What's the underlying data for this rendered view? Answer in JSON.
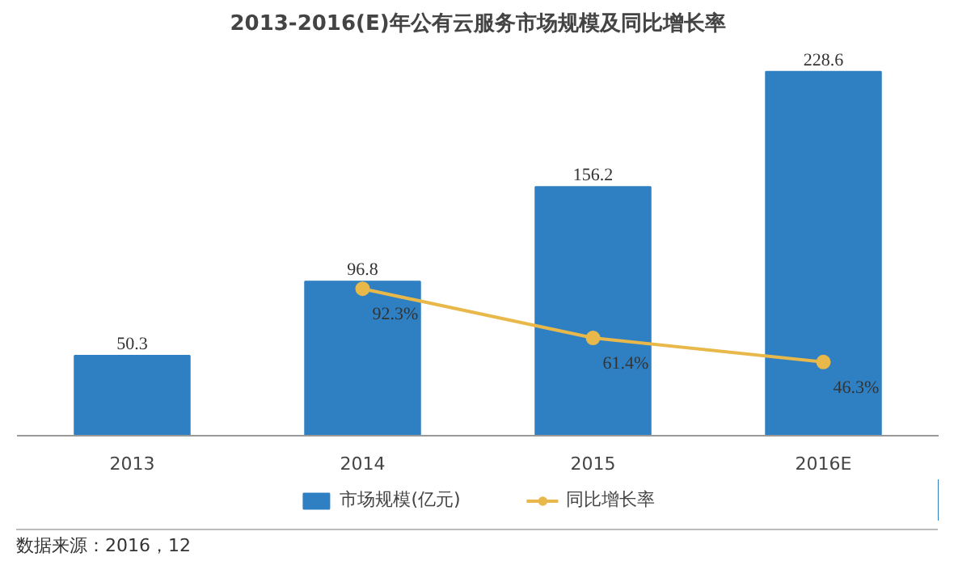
{
  "chart_data": {
    "type": "bar",
    "title": "2013-2016(E)年公有云服务市场规模及同比增长率",
    "categories": [
      "2013",
      "2014",
      "2015",
      "2016E"
    ],
    "series": [
      {
        "name": "市场规模(亿元)",
        "color": "#2f80c3",
        "values": [
          50.3,
          96.8,
          156.2,
          228.6
        ],
        "value_labels": [
          "50.3",
          "96.8",
          "156.2",
          "228.6"
        ]
      },
      {
        "name": "同比增长率",
        "type": "line",
        "axis": "y2",
        "color": "#e8b94a",
        "values": [
          null,
          92.3,
          61.4,
          46.3
        ],
        "value_labels": [
          null,
          "92.3%",
          "61.4%",
          "46.3%"
        ]
      }
    ],
    "tick_labels": "x",
    "legend": "bottom",
    "marker": "circle",
    "annotations": [
      "数据来源：2016，12"
    ]
  }
}
